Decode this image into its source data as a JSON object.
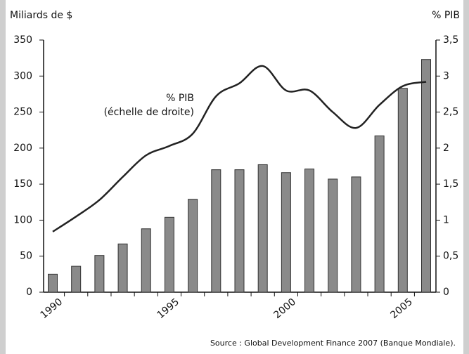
{
  "chart_data": {
    "type": "bar_line",
    "y_axis_label": "Miliards de $",
    "y2_axis_label": "% PIB",
    "annotation": [
      "% PIB",
      "(échelle de droite)"
    ],
    "source": "Source : Global Development Finance 2007 (Banque Mondiale).",
    "categories": [
      "1990",
      null,
      null,
      null,
      null,
      "1995",
      null,
      null,
      null,
      null,
      "2000",
      null,
      null,
      null,
      null,
      "2005",
      null
    ],
    "series": [
      {
        "name": "Miliards de $",
        "type": "bar",
        "color": "#8a8a8a",
        "values": [
          25,
          36,
          51,
          67,
          88,
          104,
          129,
          170,
          170,
          177,
          166,
          171,
          157,
          160,
          217,
          283,
          323
        ]
      },
      {
        "name": "% PIB",
        "type": "line",
        "axis": "y2",
        "color": "#222222",
        "values": [
          0.84,
          1.05,
          1.28,
          1.6,
          1.9,
          2.03,
          2.2,
          2.72,
          2.9,
          3.14,
          2.8,
          2.8,
          2.5,
          2.28,
          2.6,
          2.86,
          2.92
        ]
      }
    ],
    "ylim": [
      0,
      350
    ],
    "yticks": [
      0,
      50,
      100,
      150,
      200,
      250,
      300,
      350
    ],
    "y2lim": [
      0,
      3.5
    ],
    "y2ticks": [
      0,
      {
        "value": 0.5,
        "label": "0,5"
      },
      1,
      {
        "value": 1.5,
        "label": "1,5"
      },
      2,
      {
        "value": 2.5,
        "label": "2,5"
      },
      3,
      {
        "value": 3.5,
        "label": "3,5"
      }
    ]
  }
}
